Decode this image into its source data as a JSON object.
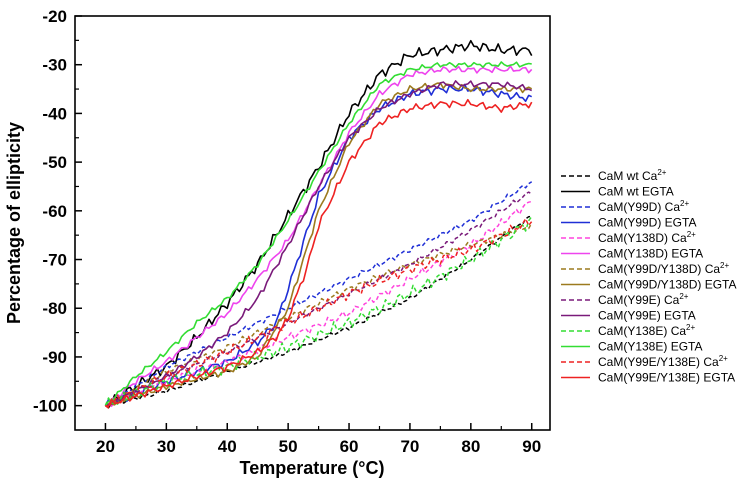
{
  "chart_data": {
    "type": "line",
    "title": "",
    "xlabel": "Temperature (°C)",
    "ylabel": "Percentage  of ellipticity",
    "xlim": [
      15,
      93
    ],
    "ylim": [
      -105,
      -20
    ],
    "xticks": [
      20,
      30,
      40,
      50,
      60,
      70,
      80,
      90
    ],
    "yticks": [
      -20,
      -30,
      -40,
      -50,
      -60,
      -70,
      -80,
      -90,
      -100
    ],
    "xtick_labels": [
      "20",
      "30",
      "40",
      "50",
      "60",
      "70",
      "80",
      "90"
    ],
    "ytick_labels": [
      "-20",
      "-30",
      "-40",
      "-50",
      "-60",
      "-70",
      "-80",
      "-90",
      "-100"
    ],
    "grid": false,
    "legend_position": "right",
    "series": [
      {
        "name": "CaM wt Ca",
        "sup": "2+",
        "color": "#000000",
        "dash": true,
        "jitter": 0.4,
        "x": [
          20,
          30,
          40,
          50,
          60,
          70,
          80,
          90
        ],
        "y": [
          -100,
          -97,
          -93,
          -89,
          -84,
          -78,
          -70,
          -61
        ]
      },
      {
        "name": "CaM wt EGTA",
        "sup": "",
        "color": "#000000",
        "dash": false,
        "jitter": 1.0,
        "x": [
          20,
          25,
          30,
          35,
          40,
          45,
          50,
          55,
          60,
          65,
          70,
          75,
          80,
          85,
          90
        ],
        "y": [
          -100,
          -96,
          -92,
          -86,
          -79,
          -71,
          -61,
          -51,
          -40,
          -32,
          -28,
          -27,
          -26,
          -27,
          -27
        ]
      },
      {
        "name": "CaM(Y99D) Ca",
        "sup": "2+",
        "color": "#1f2fd6",
        "dash": true,
        "jitter": 0.5,
        "x": [
          20,
          30,
          40,
          50,
          60,
          70,
          80,
          90
        ],
        "y": [
          -100,
          -92,
          -86,
          -80,
          -74,
          -68,
          -62,
          -54
        ]
      },
      {
        "name": "CaM(Y99D) EGTA",
        "sup": "",
        "color": "#1f2fd6",
        "dash": false,
        "jitter": 0.8,
        "x": [
          20,
          30,
          40,
          45,
          48,
          50,
          55,
          60,
          65,
          70,
          75,
          80,
          85,
          90
        ],
        "y": [
          -100,
          -95,
          -91,
          -87,
          -83,
          -76,
          -57,
          -45,
          -39,
          -36,
          -35,
          -35,
          -36,
          -37
        ]
      },
      {
        "name": "CaM(Y138D) Ca",
        "sup": "2+",
        "color": "#ff44dd",
        "dash": true,
        "jitter": 0.8,
        "x": [
          20,
          30,
          40,
          50,
          60,
          70,
          80,
          90
        ],
        "y": [
          -100,
          -95,
          -91,
          -86,
          -81,
          -74,
          -67,
          -58
        ]
      },
      {
        "name": "CaM(Y138D) EGTA",
        "sup": "",
        "color": "#ee44ee",
        "dash": false,
        "jitter": 0.6,
        "x": [
          20,
          25,
          30,
          35,
          40,
          45,
          50,
          55,
          60,
          65,
          70,
          75,
          80,
          85,
          90
        ],
        "y": [
          -100,
          -95,
          -91,
          -86,
          -81,
          -74,
          -66,
          -55,
          -44,
          -36,
          -32,
          -31,
          -31,
          -31,
          -31
        ]
      },
      {
        "name": "CaM(Y99D/Y138D) Ca",
        "sup": "2+",
        "color": "#9c7a1e",
        "dash": true,
        "jitter": 0.6,
        "x": [
          20,
          30,
          40,
          50,
          60,
          70,
          80,
          90
        ],
        "y": [
          -100,
          -93,
          -88,
          -82,
          -76,
          -71,
          -67,
          -63
        ]
      },
      {
        "name": "CaM(Y99D/Y138D) EGTA",
        "sup": "",
        "color": "#9c7a1e",
        "dash": false,
        "jitter": 0.6,
        "x": [
          20,
          30,
          40,
          45,
          50,
          55,
          60,
          65,
          70,
          75,
          80,
          85,
          90
        ],
        "y": [
          -100,
          -96,
          -93,
          -90,
          -80,
          -60,
          -46,
          -38,
          -35,
          -34,
          -35,
          -35,
          -35
        ]
      },
      {
        "name": "CaM(Y99E) Ca",
        "sup": "2+",
        "color": "#7a1a7a",
        "dash": true,
        "jitter": 0.5,
        "x": [
          20,
          30,
          40,
          50,
          60,
          70,
          80,
          90
        ],
        "y": [
          -100,
          -94,
          -89,
          -83,
          -77,
          -71,
          -64,
          -56
        ]
      },
      {
        "name": "CaM(Y99E) EGTA",
        "sup": "",
        "color": "#7a1a7a",
        "dash": false,
        "jitter": 0.6,
        "x": [
          20,
          25,
          30,
          35,
          40,
          45,
          50,
          55,
          60,
          65,
          70,
          75,
          80,
          85,
          90
        ],
        "y": [
          -100,
          -97,
          -94,
          -90,
          -85,
          -78,
          -67,
          -55,
          -45,
          -39,
          -36,
          -34,
          -34,
          -34,
          -35
        ]
      },
      {
        "name": "CaM(Y138E) Ca",
        "sup": "2+",
        "color": "#33dd33",
        "dash": true,
        "jitter": 1.2,
        "x": [
          20,
          30,
          40,
          50,
          60,
          70,
          80,
          90
        ],
        "y": [
          -100,
          -95,
          -92,
          -88,
          -83,
          -77,
          -70,
          -62
        ]
      },
      {
        "name": "CaM(Y138E) EGTA",
        "sup": "",
        "color": "#33dd33",
        "dash": false,
        "jitter": 0.5,
        "x": [
          20,
          25,
          30,
          35,
          40,
          45,
          50,
          55,
          60,
          65,
          70,
          75,
          80,
          85,
          90
        ],
        "y": [
          -100,
          -94,
          -89,
          -83,
          -78,
          -71,
          -62,
          -52,
          -42,
          -34,
          -31,
          -30,
          -30,
          -30,
          -30
        ]
      },
      {
        "name": "CaM(Y99E/Y138E) Ca",
        "sup": "2+",
        "color": "#ee2222",
        "dash": true,
        "jitter": 1.0,
        "x": [
          20,
          30,
          40,
          50,
          60,
          70,
          80,
          90
        ],
        "y": [
          -100,
          -94,
          -89,
          -83,
          -77,
          -72,
          -68,
          -62
        ]
      },
      {
        "name": "CaM(Y99E/Y138E) EGTA",
        "sup": "",
        "color": "#ee2222",
        "dash": false,
        "jitter": 0.7,
        "x": [
          20,
          30,
          40,
          45,
          48,
          50,
          53,
          55,
          60,
          65,
          70,
          75,
          80,
          85,
          90
        ],
        "y": [
          -100,
          -96,
          -92,
          -89,
          -86,
          -82,
          -72,
          -63,
          -50,
          -42,
          -39,
          -38,
          -38,
          -39,
          -38
        ]
      }
    ]
  }
}
